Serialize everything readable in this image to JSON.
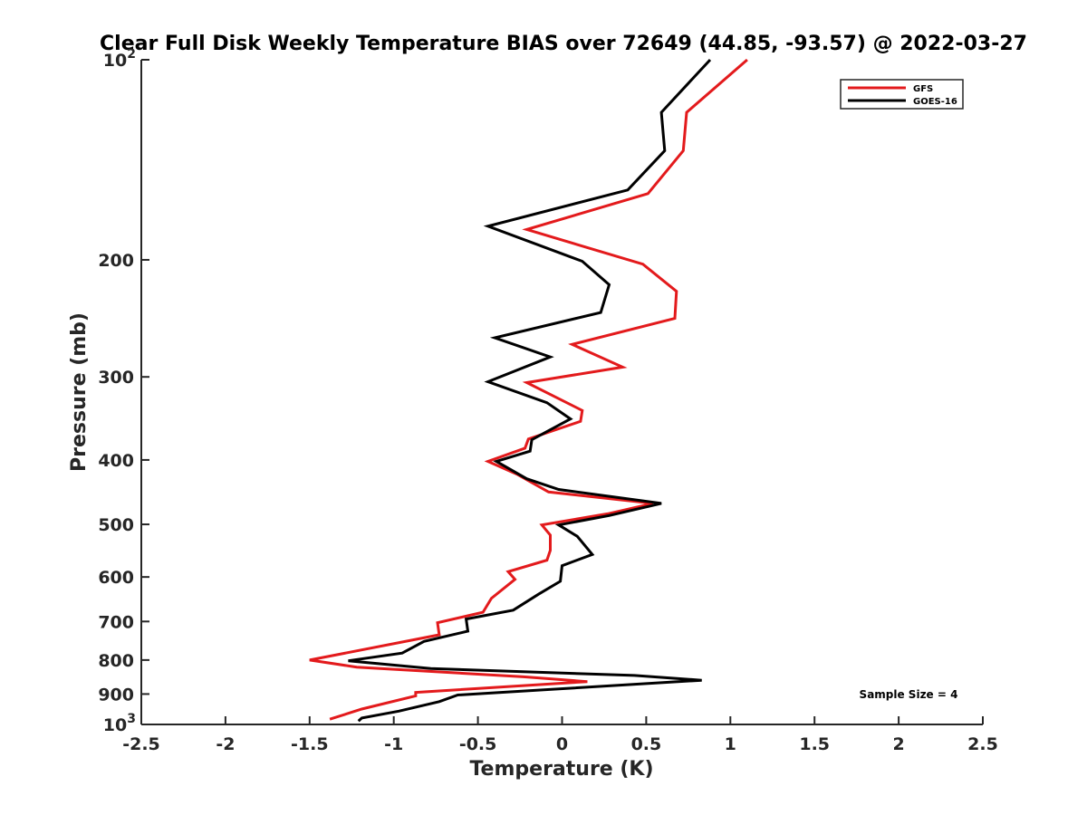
{
  "chart_data": {
    "type": "line",
    "title": "Clear Full Disk Weekly Temperature BIAS over 72649 (44.85, -93.57) @ 2022-03-27",
    "xlabel": "Temperature (K)",
    "ylabel": "Pressure (mb)",
    "xlim": [
      -2.5,
      2.5
    ],
    "ylim": [
      1000,
      100
    ],
    "y_scale": "log",
    "y_reversed": true,
    "grid": false,
    "legend_position": "top-right",
    "x_ticks": [
      {
        "value": -2.5,
        "label": "-2.5"
      },
      {
        "value": -2,
        "label": "-2"
      },
      {
        "value": -1.5,
        "label": "-1.5"
      },
      {
        "value": -1,
        "label": "-1"
      },
      {
        "value": -0.5,
        "label": "-0.5"
      },
      {
        "value": 0,
        "label": "0"
      },
      {
        "value": 0.5,
        "label": "0.5"
      },
      {
        "value": 1,
        "label": "1"
      },
      {
        "value": 1.5,
        "label": "1.5"
      },
      {
        "value": 2,
        "label": "2"
      },
      {
        "value": 2.5,
        "label": "2.5"
      }
    ],
    "y_ticks": [
      {
        "value": 100,
        "label": "10",
        "sup": "2"
      },
      {
        "value": 200,
        "label": "200"
      },
      {
        "value": 300,
        "label": "300"
      },
      {
        "value": 400,
        "label": "400"
      },
      {
        "value": 500,
        "label": "500"
      },
      {
        "value": 600,
        "label": "600"
      },
      {
        "value": 700,
        "label": "700"
      },
      {
        "value": 800,
        "label": "800"
      },
      {
        "value": 900,
        "label": "900"
      },
      {
        "value": 1000,
        "label": "10",
        "sup": "3"
      }
    ],
    "series": [
      {
        "name": "GFS",
        "color": "#e31a1c",
        "points": [
          {
            "x": 1.1,
            "y": 100
          },
          {
            "x": 0.74,
            "y": 120
          },
          {
            "x": 0.72,
            "y": 137
          },
          {
            "x": 0.51,
            "y": 159
          },
          {
            "x": -0.21,
            "y": 180
          },
          {
            "x": 0.48,
            "y": 203
          },
          {
            "x": 0.68,
            "y": 223
          },
          {
            "x": 0.67,
            "y": 245
          },
          {
            "x": 0.06,
            "y": 268
          },
          {
            "x": 0.36,
            "y": 290
          },
          {
            "x": -0.21,
            "y": 306
          },
          {
            "x": 0.12,
            "y": 337
          },
          {
            "x": 0.11,
            "y": 350
          },
          {
            "x": -0.2,
            "y": 372
          },
          {
            "x": -0.22,
            "y": 384
          },
          {
            "x": -0.44,
            "y": 402
          },
          {
            "x": -0.27,
            "y": 420
          },
          {
            "x": -0.08,
            "y": 447
          },
          {
            "x": 0.54,
            "y": 465
          },
          {
            "x": 0.27,
            "y": 482
          },
          {
            "x": -0.12,
            "y": 501
          },
          {
            "x": -0.07,
            "y": 519
          },
          {
            "x": -0.07,
            "y": 547
          },
          {
            "x": -0.09,
            "y": 566
          },
          {
            "x": -0.32,
            "y": 589
          },
          {
            "x": -0.28,
            "y": 605
          },
          {
            "x": -0.42,
            "y": 646
          },
          {
            "x": -0.47,
            "y": 678
          },
          {
            "x": -0.74,
            "y": 703
          },
          {
            "x": -0.73,
            "y": 733
          },
          {
            "x": -1.5,
            "y": 800
          },
          {
            "x": -1.22,
            "y": 820
          },
          {
            "x": -0.23,
            "y": 848
          },
          {
            "x": 0.15,
            "y": 862
          },
          {
            "x": -0.87,
            "y": 895
          },
          {
            "x": -0.87,
            "y": 906
          },
          {
            "x": -1.19,
            "y": 948
          },
          {
            "x": -1.38,
            "y": 982
          }
        ]
      },
      {
        "name": "GOES-16",
        "color": "#000000",
        "points": [
          {
            "x": 0.88,
            "y": 100
          },
          {
            "x": 0.59,
            "y": 120
          },
          {
            "x": 0.61,
            "y": 137
          },
          {
            "x": 0.39,
            "y": 157
          },
          {
            "x": -0.44,
            "y": 178
          },
          {
            "x": 0.12,
            "y": 201
          },
          {
            "x": 0.28,
            "y": 218
          },
          {
            "x": 0.23,
            "y": 240
          },
          {
            "x": -0.4,
            "y": 262
          },
          {
            "x": -0.07,
            "y": 280
          },
          {
            "x": -0.44,
            "y": 305
          },
          {
            "x": -0.09,
            "y": 328
          },
          {
            "x": 0.05,
            "y": 347
          },
          {
            "x": -0.18,
            "y": 373
          },
          {
            "x": -0.19,
            "y": 388
          },
          {
            "x": -0.39,
            "y": 402
          },
          {
            "x": -0.21,
            "y": 427
          },
          {
            "x": -0.02,
            "y": 443
          },
          {
            "x": 0.59,
            "y": 465
          },
          {
            "x": 0.28,
            "y": 485
          },
          {
            "x": -0.02,
            "y": 501
          },
          {
            "x": 0.09,
            "y": 521
          },
          {
            "x": 0.18,
            "y": 555
          },
          {
            "x": 0.0,
            "y": 577
          },
          {
            "x": -0.01,
            "y": 609
          },
          {
            "x": -0.14,
            "y": 637
          },
          {
            "x": -0.29,
            "y": 673
          },
          {
            "x": -0.57,
            "y": 694
          },
          {
            "x": -0.56,
            "y": 724
          },
          {
            "x": -0.82,
            "y": 750
          },
          {
            "x": -0.95,
            "y": 781
          },
          {
            "x": -1.27,
            "y": 802
          },
          {
            "x": -0.78,
            "y": 824
          },
          {
            "x": 0.43,
            "y": 844
          },
          {
            "x": 0.83,
            "y": 858
          },
          {
            "x": -0.62,
            "y": 903
          },
          {
            "x": -0.73,
            "y": 924
          },
          {
            "x": -0.97,
            "y": 955
          },
          {
            "x": -1.19,
            "y": 978
          },
          {
            "x": -1.21,
            "y": 988
          }
        ]
      }
    ],
    "annotations": [
      "Sample Size = 4"
    ]
  }
}
